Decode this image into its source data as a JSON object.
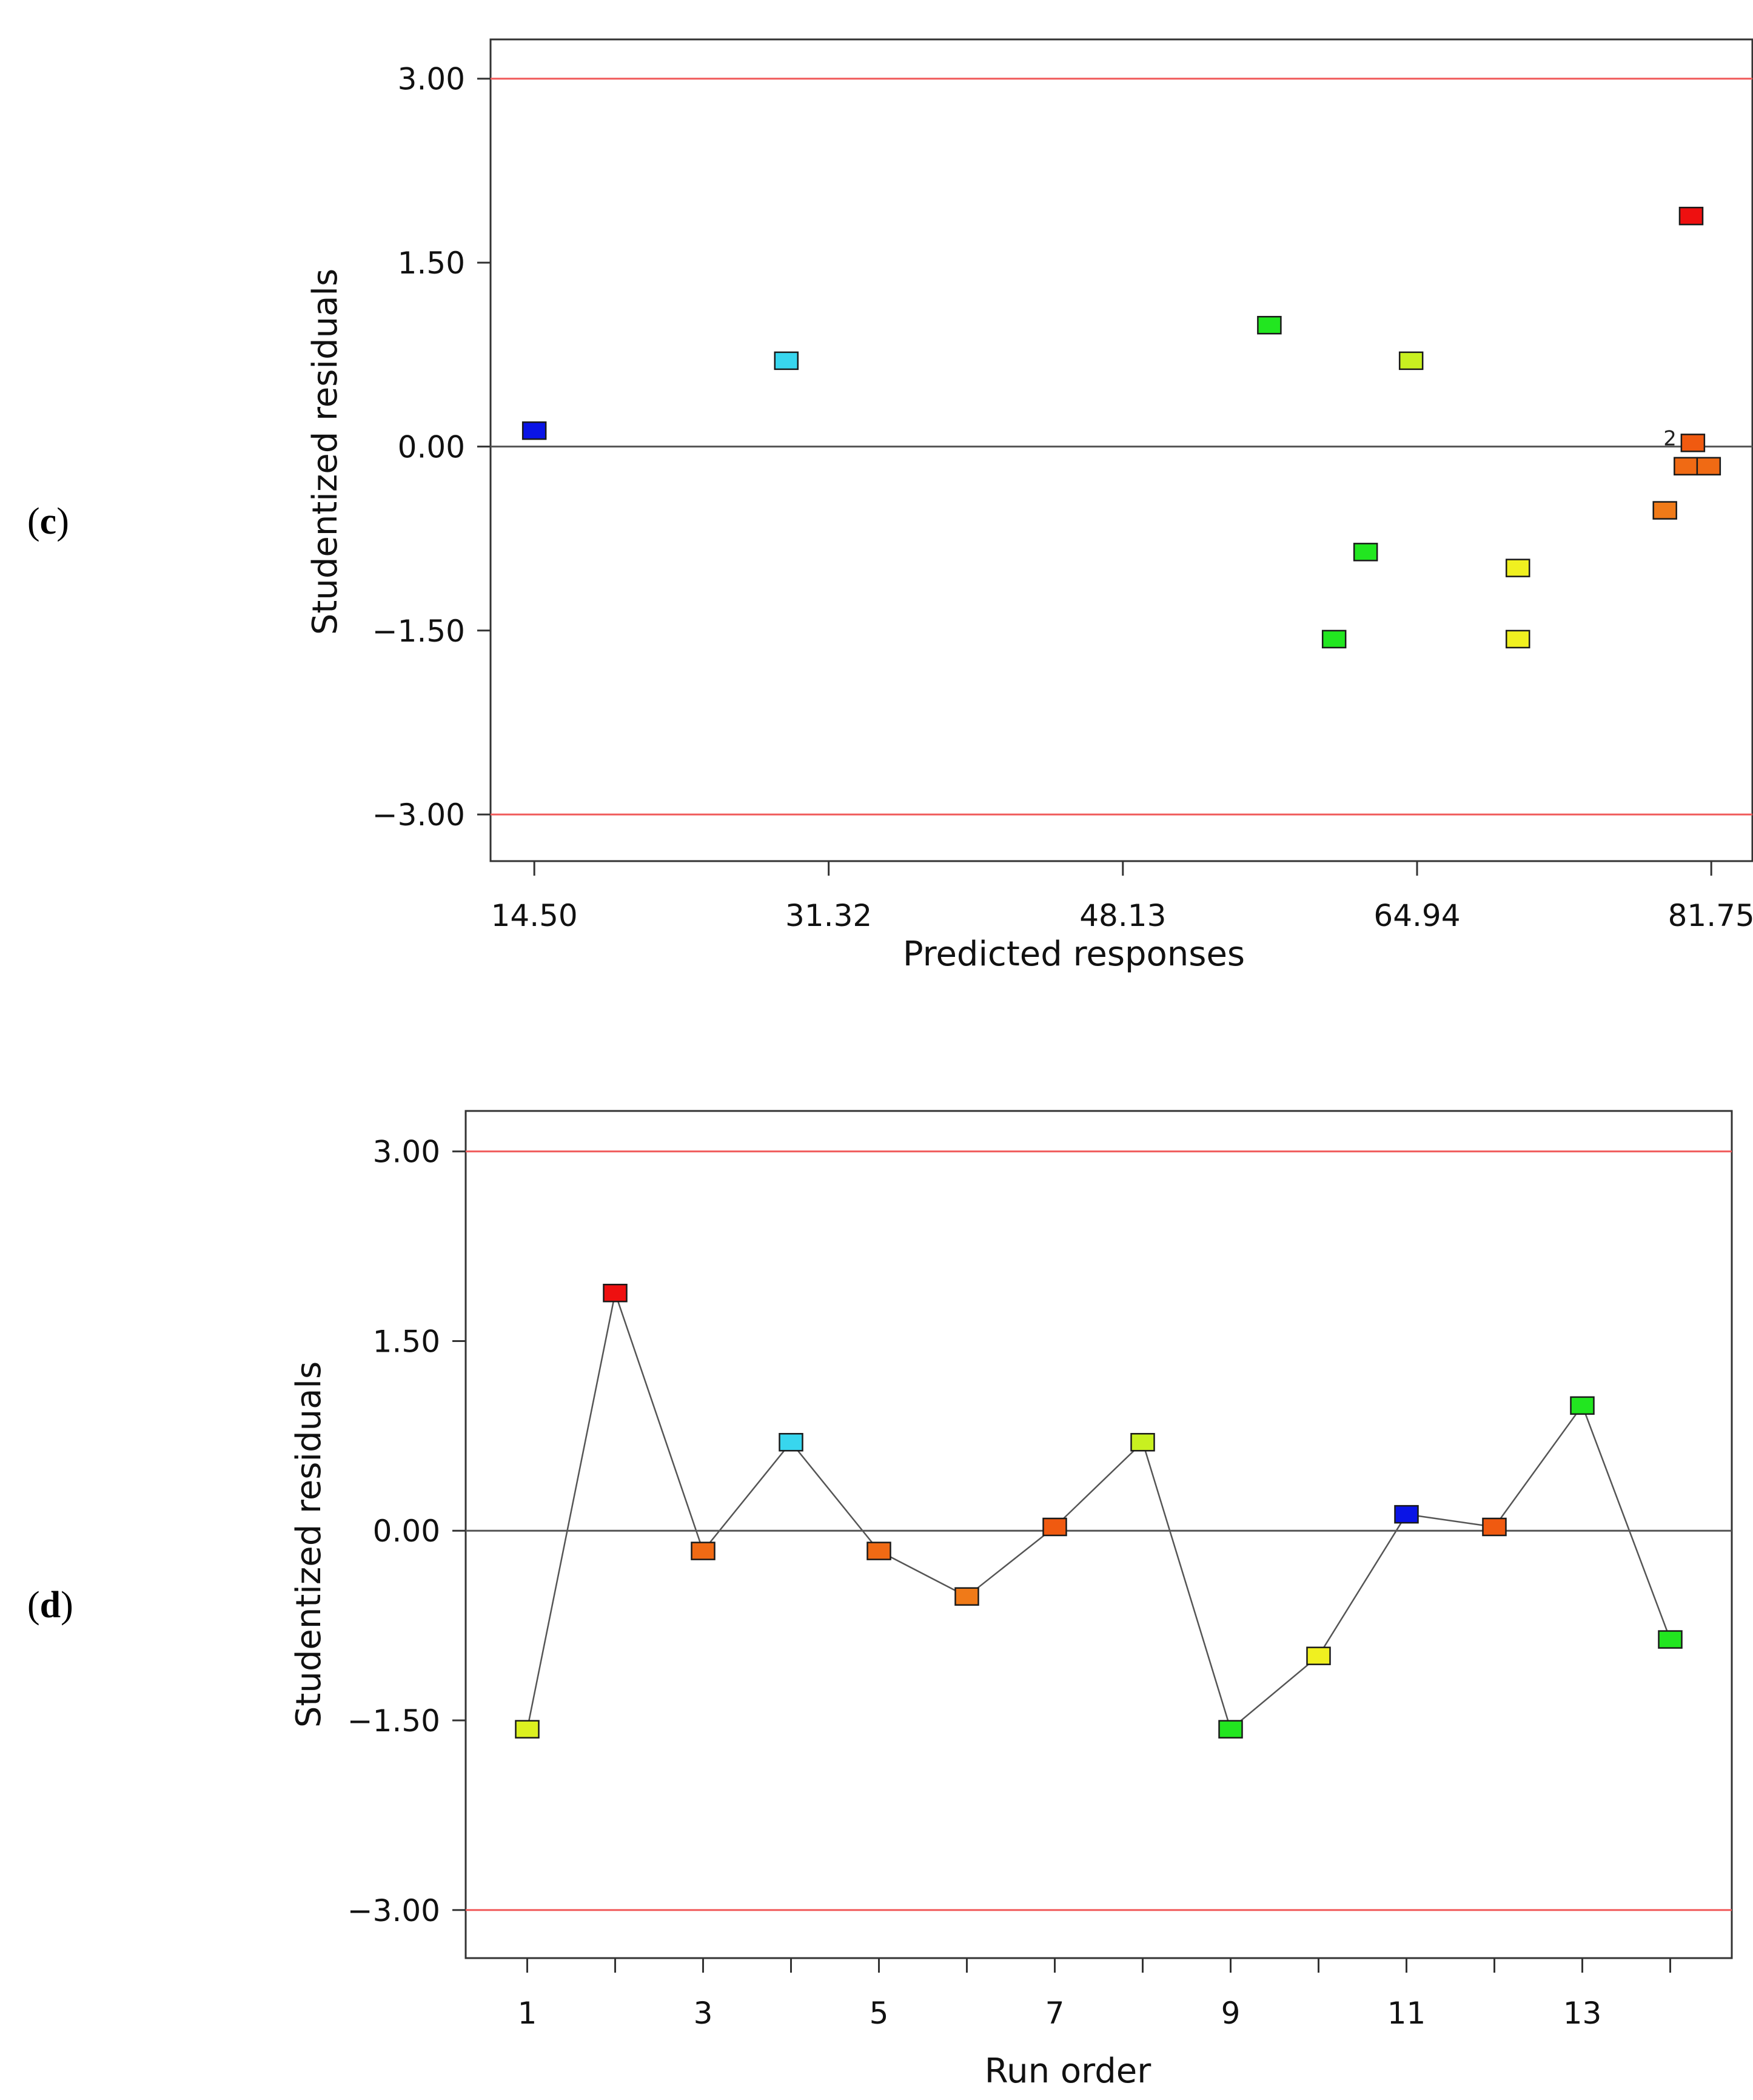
{
  "chart_data": [
    {
      "panel_label": "c",
      "type": "scatter",
      "title": "",
      "xlabel": "Predicted responses",
      "ylabel": "Studentized residuals",
      "xlim": [
        12.0,
        84.1
      ],
      "ylim": [
        -3.38,
        3.32
      ],
      "x_ticks": [
        14.5,
        31.32,
        48.13,
        64.94,
        81.75
      ],
      "x_tick_labels": [
        "14.50",
        "31.32",
        "48.13",
        "64.94",
        "81.75"
      ],
      "y_ticks": [
        3.0,
        1.5,
        0.0,
        -1.5,
        -3.0
      ],
      "y_tick_labels": [
        "3.00",
        "1.50",
        "0.00",
        "−1.50",
        "−3.00"
      ],
      "limit_lines": [
        3.0,
        -3.0
      ],
      "limit_line_color": "#f05a5a",
      "zero_line_color": "#555555",
      "points": [
        {
          "x": 14.5,
          "y": 0.13,
          "color": "#0a14e6"
        },
        {
          "x": 28.9,
          "y": 0.7,
          "color": "#38d6ee"
        },
        {
          "x": 56.5,
          "y": 0.99,
          "color": "#22e620"
        },
        {
          "x": 64.6,
          "y": 0.7,
          "color": "#c8f020"
        },
        {
          "x": 60.2,
          "y": -1.57,
          "color": "#22e620"
        },
        {
          "x": 62.0,
          "y": -0.86,
          "color": "#22e620"
        },
        {
          "x": 70.7,
          "y": -0.99,
          "color": "#f0f020"
        },
        {
          "x": 70.7,
          "y": -1.57,
          "color": "#f0f020"
        },
        {
          "x": 80.6,
          "y": 1.88,
          "color": "#ee1010"
        },
        {
          "x": 80.7,
          "y": 0.03,
          "color": "#f05a10",
          "annotation": "2"
        },
        {
          "x": 80.3,
          "y": -0.16,
          "color": "#f06a14"
        },
        {
          "x": 81.6,
          "y": -0.16,
          "color": "#f06a14"
        },
        {
          "x": 79.1,
          "y": -0.52,
          "color": "#f07a18"
        }
      ]
    },
    {
      "panel_label": "d",
      "type": "line",
      "title": "",
      "xlabel": "Run order",
      "ylabel": "Studentized residuals",
      "xlim": [
        0.3,
        14.7
      ],
      "ylim": [
        -3.38,
        3.32
      ],
      "x_ticks": [
        1,
        3,
        5,
        7,
        9,
        11,
        13
      ],
      "x_tick_labels": [
        "1",
        "3",
        "5",
        "7",
        "9",
        "11",
        "13"
      ],
      "x_minor_ticks": [
        2,
        4,
        6,
        8,
        10,
        12,
        14
      ],
      "y_ticks": [
        3.0,
        1.5,
        0.0,
        -1.5,
        -3.0
      ],
      "y_tick_labels": [
        "3.00",
        "1.50",
        "0.00",
        "−1.50",
        "−3.00"
      ],
      "limit_lines": [
        3.0,
        -3.0
      ],
      "limit_line_color": "#f05a5a",
      "zero_line_color": "#555555",
      "series_line_color": "#555555",
      "points": [
        {
          "x": 1,
          "y": -1.57,
          "color": "#dcf020"
        },
        {
          "x": 2,
          "y": 1.88,
          "color": "#ee1010"
        },
        {
          "x": 3,
          "y": -0.16,
          "color": "#f06a14"
        },
        {
          "x": 4,
          "y": 0.7,
          "color": "#38d6ee"
        },
        {
          "x": 5,
          "y": -0.16,
          "color": "#f06a14"
        },
        {
          "x": 6,
          "y": -0.52,
          "color": "#f07a18"
        },
        {
          "x": 7,
          "y": 0.03,
          "color": "#f05a10"
        },
        {
          "x": 8,
          "y": 0.7,
          "color": "#c8f020"
        },
        {
          "x": 9,
          "y": -1.57,
          "color": "#22e620"
        },
        {
          "x": 10,
          "y": -0.99,
          "color": "#f0f020"
        },
        {
          "x": 11,
          "y": 0.13,
          "color": "#0a14e6"
        },
        {
          "x": 12,
          "y": 0.03,
          "color": "#f05a10"
        },
        {
          "x": 13,
          "y": 0.99,
          "color": "#22e620"
        },
        {
          "x": 14,
          "y": -0.86,
          "color": "#22e620"
        }
      ]
    }
  ]
}
